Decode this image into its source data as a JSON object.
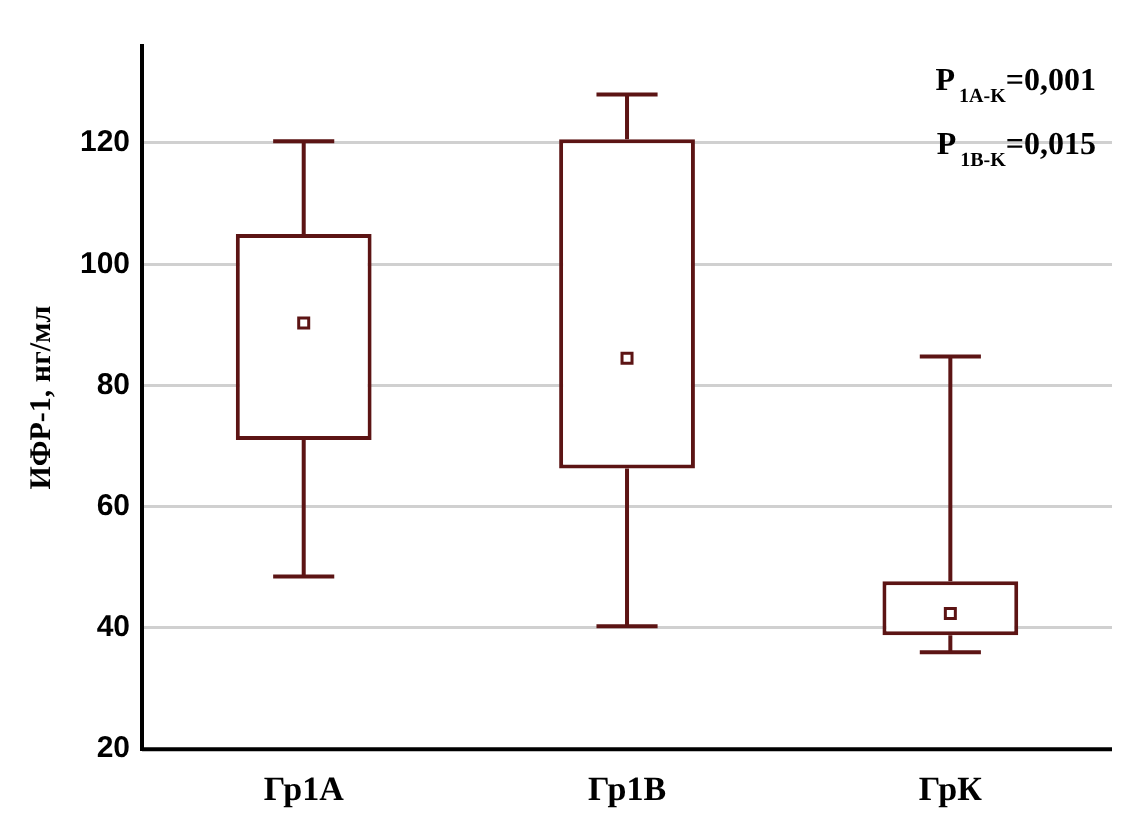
{
  "chart_data": {
    "type": "box",
    "ylabel": "ИФР-1, нг/мл",
    "categories": [
      "Гр1А",
      "Гр1В",
      "ГрК"
    ],
    "series": [
      {
        "color": "#5c1414",
        "boxes": [
          {
            "low": 48.5,
            "q1": 71,
            "median": 90.3,
            "q3": 105,
            "high": 120.3
          },
          {
            "low": 40.3,
            "q1": 66.3,
            "median": 84.5,
            "q3": 120.6,
            "high": 128
          },
          {
            "low": 36,
            "q1": 38.8,
            "median": 42.4,
            "q3": 47.7,
            "high": 84.8
          }
        ]
      }
    ],
    "ylim": [
      20,
      136
    ],
    "yticks": [
      20,
      40,
      60,
      80,
      100,
      120
    ],
    "grid": "y",
    "annotations": [
      "P$_{1A-K}$=0,001",
      "P$_{1B-K}$=0,015"
    ]
  }
}
